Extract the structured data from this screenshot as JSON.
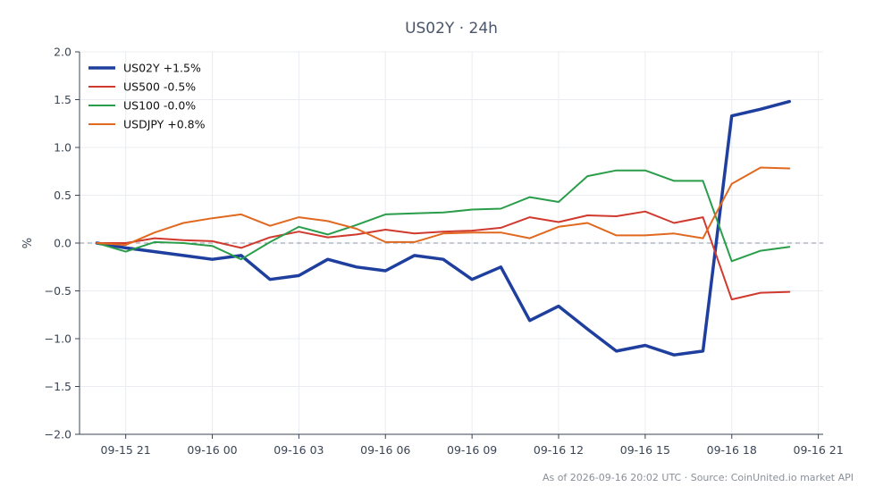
{
  "chart_data": {
    "type": "line",
    "title": "US02Y · 24h",
    "xlabel": "",
    "ylabel": "%",
    "footer": "As of 2026-09-16 20:02 UTC · Source: CoinUnited.io market API",
    "xlim": [
      "2026-09-15 19:24",
      "2026-09-16 21:10"
    ],
    "ylim": [
      -2.0,
      2.0
    ],
    "x_ticks": [
      {
        "t": "2026-09-15 21:00",
        "label": "09-15 21"
      },
      {
        "t": "2026-09-16 00:00",
        "label": "09-16 00"
      },
      {
        "t": "2026-09-16 03:00",
        "label": "09-16 03"
      },
      {
        "t": "2026-09-16 06:00",
        "label": "09-16 06"
      },
      {
        "t": "2026-09-16 09:00",
        "label": "09-16 09"
      },
      {
        "t": "2026-09-16 12:00",
        "label": "09-16 12"
      },
      {
        "t": "2026-09-16 15:00",
        "label": "09-16 15"
      },
      {
        "t": "2026-09-16 18:00",
        "label": "09-16 18"
      },
      {
        "t": "2026-09-16 21:00",
        "label": "09-16 21"
      }
    ],
    "y_ticks": [
      {
        "v": 2.0,
        "label": "2.0"
      },
      {
        "v": 1.5,
        "label": "1.5"
      },
      {
        "v": 1.0,
        "label": "1.0"
      },
      {
        "v": 0.5,
        "label": "0.5"
      },
      {
        "v": 0.0,
        "label": "0.0"
      },
      {
        "v": -0.5,
        "label": "−0.5"
      },
      {
        "v": -1.0,
        "label": "−1.0"
      },
      {
        "v": -1.5,
        "label": "−1.5"
      },
      {
        "v": -2.0,
        "label": "−2.0"
      }
    ],
    "grid": true,
    "zero_line": true,
    "legend_position": "top-left",
    "x": [
      "2026-09-15 20:00",
      "2026-09-15 21:00",
      "2026-09-15 22:00",
      "2026-09-15 23:00",
      "2026-09-16 00:00",
      "2026-09-16 01:00",
      "2026-09-16 02:00",
      "2026-09-16 03:00",
      "2026-09-16 04:00",
      "2026-09-16 05:00",
      "2026-09-16 06:00",
      "2026-09-16 07:00",
      "2026-09-16 08:00",
      "2026-09-16 09:00",
      "2026-09-16 10:00",
      "2026-09-16 11:00",
      "2026-09-16 12:00",
      "2026-09-16 13:00",
      "2026-09-16 14:00",
      "2026-09-16 15:00",
      "2026-09-16 16:00",
      "2026-09-16 17:00",
      "2026-09-16 18:00",
      "2026-09-16 19:00",
      "2026-09-16 20:00"
    ],
    "series": [
      {
        "name": "US02Y +1.5%",
        "color": "#1f3f9e",
        "width": 3.5,
        "values": [
          0.0,
          -0.05,
          -0.09,
          -0.13,
          -0.17,
          -0.13,
          -0.38,
          -0.34,
          -0.17,
          -0.25,
          -0.29,
          -0.13,
          -0.17,
          -0.38,
          -0.25,
          -0.81,
          -0.66,
          -0.9,
          -1.13,
          -1.07,
          -1.17,
          -1.13,
          1.33,
          1.4,
          1.48
        ]
      },
      {
        "name": "US500 -0.5%",
        "color": "#d03a2e",
        "width": 2,
        "values": [
          0.0,
          0.0,
          0.05,
          0.03,
          0.02,
          -0.05,
          0.06,
          0.12,
          0.06,
          0.09,
          0.14,
          0.1,
          0.12,
          0.13,
          0.16,
          0.27,
          0.22,
          0.29,
          0.28,
          0.33,
          0.21,
          0.27,
          -0.59,
          -0.52,
          -0.51
        ]
      },
      {
        "name": "US100 -0.0%",
        "color": "#2a9d4a",
        "width": 2,
        "values": [
          0.0,
          -0.09,
          0.01,
          0.0,
          -0.03,
          -0.17,
          0.01,
          0.17,
          0.09,
          0.19,
          0.3,
          0.31,
          0.32,
          0.35,
          0.36,
          0.48,
          0.43,
          0.7,
          0.76,
          0.76,
          0.65,
          0.65,
          -0.19,
          -0.08,
          -0.04
        ]
      },
      {
        "name": "USDJPY +0.8%",
        "color": "#e0691f",
        "width": 2,
        "values": [
          0.0,
          -0.02,
          0.11,
          0.21,
          0.26,
          0.3,
          0.18,
          0.27,
          0.23,
          0.15,
          0.01,
          0.01,
          0.1,
          0.11,
          0.11,
          0.05,
          0.17,
          0.21,
          0.08,
          0.08,
          0.1,
          0.05,
          0.62,
          0.79,
          0.78
        ]
      }
    ]
  }
}
